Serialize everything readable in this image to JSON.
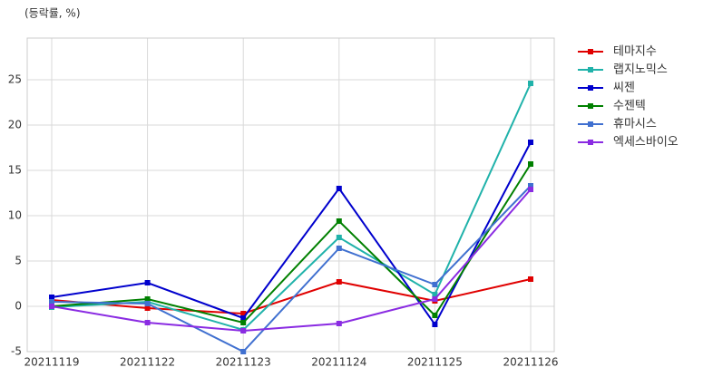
{
  "chart_data": {
    "type": "line",
    "title": "(등락률, %)",
    "categories": [
      "20211119",
      "20211122",
      "20211123",
      "20211124",
      "20211125",
      "20211126"
    ],
    "series": [
      {
        "name": "테마지수",
        "color": "#e00000",
        "values": [
          0.7,
          -0.2,
          -0.8,
          2.7,
          0.6,
          3.0
        ]
      },
      {
        "name": "랩지노믹스",
        "color": "#20b2aa",
        "values": [
          -0.1,
          0.5,
          -2.6,
          7.6,
          1.3,
          24.6
        ]
      },
      {
        "name": "씨젠",
        "color": "#0000cd",
        "values": [
          1.0,
          2.6,
          -1.3,
          13.0,
          -2.0,
          18.1
        ]
      },
      {
        "name": "수젠텍",
        "color": "#008000",
        "values": [
          0.0,
          0.8,
          -1.8,
          9.4,
          -1.0,
          15.7
        ]
      },
      {
        "name": "휴마시스",
        "color": "#4070d0",
        "values": [
          0.5,
          0.3,
          -5.0,
          6.4,
          2.4,
          13.3
        ]
      },
      {
        "name": "엑세스바이오",
        "color": "#8a2be2",
        "values": [
          0.0,
          -1.8,
          -2.7,
          -1.9,
          0.8,
          12.9
        ]
      }
    ],
    "ylim": [
      -5,
      29.6
    ],
    "yticks": [
      -5,
      0,
      5,
      10,
      15,
      20,
      25
    ],
    "grid": true,
    "legend": "right"
  }
}
